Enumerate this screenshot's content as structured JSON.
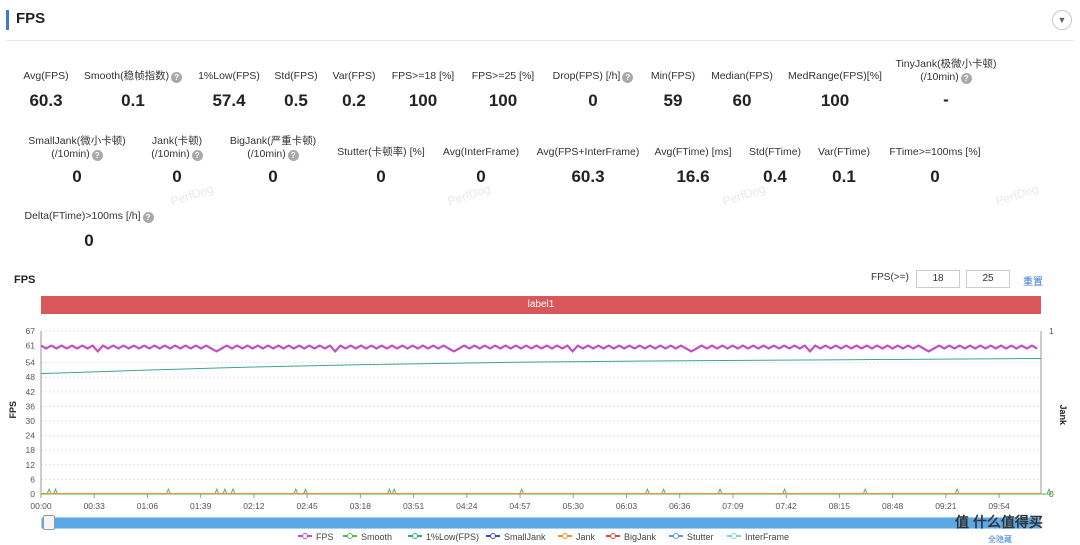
{
  "header": {
    "title": "FPS"
  },
  "metrics": [
    {
      "label": "Avg(FPS)",
      "value": "60.3",
      "help": false
    },
    {
      "label": "Smooth(稳帧指数)",
      "value": "0.1",
      "help": true
    },
    {
      "label": "1%Low(FPS)",
      "value": "57.4",
      "help": false
    },
    {
      "label": "Std(FPS)",
      "value": "0.5",
      "help": false
    },
    {
      "label": "Var(FPS)",
      "value": "0.2",
      "help": false
    },
    {
      "label": "FPS>=18 [%]",
      "value": "100",
      "help": false
    },
    {
      "label": "FPS>=25 [%]",
      "value": "100",
      "help": false
    },
    {
      "label": "Drop(FPS) [/h]",
      "value": "0",
      "help": true
    },
    {
      "label": "Min(FPS)",
      "value": "59",
      "help": false
    },
    {
      "label": "Median(FPS)",
      "value": "60",
      "help": false
    },
    {
      "label": "MedRange(FPS)[%]",
      "value": "100",
      "help": false
    },
    {
      "label": "TinyJank(极微小卡顿)",
      "label2": "(/10min)",
      "value": "-",
      "help": true
    },
    {
      "label": "SmallJank(微小卡顿)",
      "label2": "(/10min)",
      "value": "0",
      "help": true
    },
    {
      "label": "Jank(卡顿)",
      "label2": "(/10min)",
      "value": "0",
      "help": true
    },
    {
      "label": "BigJank(严重卡顿)",
      "label2": "(/10min)",
      "value": "0",
      "help": true
    },
    {
      "label": "Stutter(卡顿率) [%]",
      "value": "0",
      "help": false
    },
    {
      "label": "Avg(InterFrame)",
      "value": "0",
      "help": false
    },
    {
      "label": "Avg(FPS+InterFrame)",
      "value": "60.3",
      "help": false
    },
    {
      "label": "Avg(FTime) [ms]",
      "value": "16.6",
      "help": false
    },
    {
      "label": "Std(FTime)",
      "value": "0.4",
      "help": false
    },
    {
      "label": "Var(FTime)",
      "value": "0.1",
      "help": false
    },
    {
      "label": "FTime>=100ms [%]",
      "value": "0",
      "help": false
    },
    {
      "label": "Delta(FTime)>100ms [/h]",
      "value": "0",
      "help": true
    }
  ],
  "watermark": "PerfDog",
  "chart_section": {
    "title": "FPS",
    "filter_label": "FPS(>=)",
    "filter_values": [
      "18",
      "25"
    ],
    "reset_label": "重置",
    "event_label": "label1",
    "brand": "值 什么值得买",
    "show_all_label": "全隐藏"
  },
  "colors": {
    "fps": "#c04fc2",
    "smooth": "#53b85a",
    "low": "#3aa49a",
    "label_bar": "#d9565a",
    "accent": "#3a7bd5"
  },
  "chart_data": {
    "type": "line",
    "title": "FPS",
    "ylabel": "FPS",
    "y2label": "Jank",
    "yticks": [
      "0",
      "6",
      "12",
      "18",
      "24",
      "30",
      "36",
      "42",
      "48",
      "54",
      "61",
      "67"
    ],
    "y2ticks": [
      "0",
      "1"
    ],
    "ylim": [
      0,
      67
    ],
    "y2lim": [
      0,
      1
    ],
    "xticks": [
      "00:00",
      "00:33",
      "01:06",
      "01:39",
      "02:12",
      "02:45",
      "03:18",
      "03:51",
      "04:24",
      "04:57",
      "05:30",
      "06:03",
      "06:36",
      "07:09",
      "07:42",
      "08:15",
      "08:48",
      "09:21",
      "09:54"
    ],
    "x_range_seconds": [
      0,
      620
    ],
    "series": [
      {
        "name": "FPS",
        "values_approx": "oscillating 59-61 across full duration",
        "mean": 60.3
      },
      {
        "name": "Smooth",
        "spikes_at_seconds": [
          5,
          9,
          79,
          109,
          114,
          119,
          158,
          164,
          216,
          219,
          298,
          376,
          386,
          421,
          461,
          511,
          568,
          625
        ],
        "spike_value": 2
      },
      {
        "name": "1%Low(FPS)",
        "x": [
          0,
          60,
          120,
          200,
          300,
          400,
          500,
          620
        ],
        "values": [
          49.5,
          50.8,
          52.0,
          53.2,
          54.2,
          54.8,
          55.2,
          55.7
        ]
      },
      {
        "name": "SmallJank",
        "values": []
      },
      {
        "name": "Jank",
        "values": []
      },
      {
        "name": "BigJank",
        "values": []
      },
      {
        "name": "Stutter",
        "values": []
      },
      {
        "name": "InterFrame",
        "values": []
      }
    ],
    "legend": [
      {
        "name": "FPS",
        "color": "#c04fc2"
      },
      {
        "name": "Smooth",
        "color": "#53b85a"
      },
      {
        "name": "1%Low(FPS)",
        "color": "#3aa49a"
      },
      {
        "name": "SmallJank",
        "color": "#3b4bd6"
      },
      {
        "name": "Jank",
        "color": "#f0932b"
      },
      {
        "name": "BigJank",
        "color": "#e0483e"
      },
      {
        "name": "Stutter",
        "color": "#5b9be0"
      },
      {
        "name": "InterFrame",
        "color": "#7fd0dc"
      }
    ]
  }
}
